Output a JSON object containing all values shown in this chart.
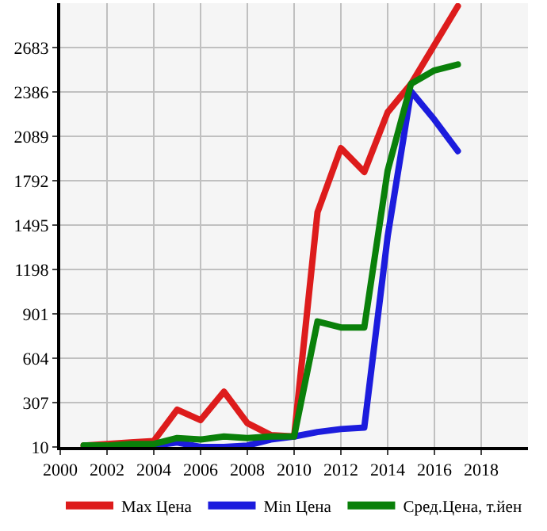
{
  "chart_data": {
    "type": "line",
    "x": [
      2001,
      2002,
      2003,
      2004,
      2005,
      2006,
      2007,
      2008,
      2009,
      2010,
      2011,
      2012,
      2013,
      2014,
      2015,
      2016,
      2017
    ],
    "series": [
      {
        "name": "Max Цена",
        "color": "#dd1c1c",
        "values": [
          20,
          30,
          40,
          50,
          260,
          190,
          380,
          170,
          90,
          80,
          1580,
          2010,
          1850,
          2250,
          2440,
          2700,
          2960
        ]
      },
      {
        "name": "Min Цена",
        "color": "#1c1cdd",
        "values": [
          null,
          null,
          null,
          20,
          40,
          10,
          10,
          20,
          60,
          80,
          110,
          130,
          140,
          1420,
          2390,
          2200,
          1990
        ]
      },
      {
        "name": "Сред.Цена, т.йен",
        "color": "#0a800a",
        "values": [
          20,
          20,
          30,
          30,
          70,
          60,
          80,
          70,
          80,
          80,
          850,
          810,
          810,
          1860,
          2440,
          2530,
          2570
        ]
      }
    ],
    "xlim": [
      2000,
      2020
    ],
    "xticks": [
      2000,
      2002,
      2004,
      2006,
      2008,
      2010,
      2012,
      2014,
      2016,
      2018
    ],
    "ylim": [
      10,
      2980
    ],
    "yticks": [
      10,
      307,
      604,
      901,
      1198,
      1495,
      1792,
      2089,
      2386,
      2683
    ],
    "grid": true,
    "legend": "bottom",
    "marker": "none",
    "line_style": "solid"
  }
}
